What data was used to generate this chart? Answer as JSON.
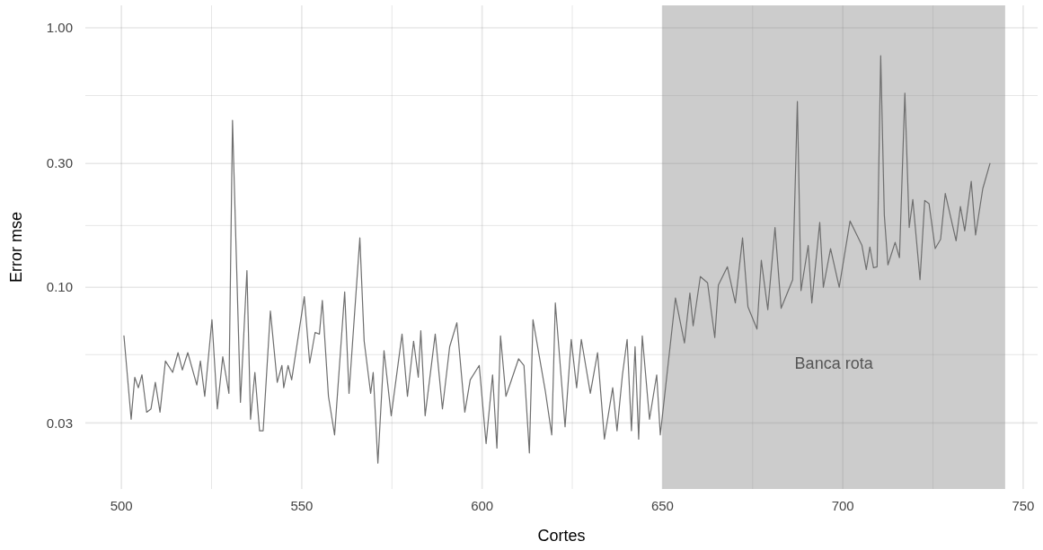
{
  "chart_data": {
    "type": "line",
    "xlabel": "Cortes",
    "ylabel": "Error mse",
    "log": "y",
    "grid": true,
    "xlim": [
      490,
      754
    ],
    "ylim": [
      0.0167,
      1.22
    ],
    "xticks": [
      500,
      {
        "value": 525,
        "label": null
      },
      550,
      {
        "value": 575,
        "label": null
      },
      600,
      {
        "value": 625,
        "label": null
      },
      650,
      {
        "value": 675,
        "label": null
      },
      700,
      {
        "value": 725,
        "label": null
      },
      750
    ],
    "yticks": [
      {
        "value": 0.03,
        "label": "0.03"
      },
      {
        "value": 0.055,
        "label": null
      },
      {
        "value": 0.1,
        "label": "0.10"
      },
      {
        "value": 0.173,
        "label": null
      },
      {
        "value": 0.3,
        "label": "0.30"
      },
      {
        "value": 0.548,
        "label": null
      },
      {
        "value": 1,
        "label": "1.00"
      }
    ],
    "bands": [
      {
        "axis": "x",
        "from": 650,
        "to": 745,
        "color": "#cccccc",
        "label": "Banca rota"
      }
    ],
    "series": [
      {
        "color": "#6e6e6e",
        "x": [
          500.7,
          502.7,
          503.7,
          504.7,
          505.7,
          507,
          508.2,
          509.4,
          510.7,
          512.2,
          514.2,
          515.7,
          516.9,
          518.4,
          520.9,
          521.9,
          523.1,
          525.1,
          526.6,
          528.1,
          529.8,
          530.8,
          531.8,
          533,
          534.8,
          535.8,
          537,
          538.3,
          539.3,
          541.3,
          543.2,
          544.5,
          545,
          546.2,
          547.2,
          550.7,
          552.2,
          553.7,
          554.9,
          555.7,
          557.4,
          559.1,
          561.9,
          563.1,
          566.1,
          567.3,
          569.1,
          569.8,
          571.1,
          572.8,
          574.8,
          577.8,
          579.3,
          581,
          582.3,
          583,
          584.2,
          587,
          589,
          591,
          593,
          595.2,
          596.7,
          599.2,
          601.1,
          602.9,
          604.1,
          605.1,
          606.6,
          610.1,
          611.6,
          613.1,
          614.1,
          617.5,
          619.3,
          620.3,
          623,
          624.7,
          626.2,
          627.5,
          630,
          632,
          633.9,
          636.2,
          637.4,
          638.9,
          640.2,
          641.4,
          642.4,
          643.4,
          644.4,
          646.4,
          648.4,
          649.4,
          653.6,
          656.1,
          657.6,
          658.5,
          660.5,
          662.5,
          664.5,
          665.5,
          668,
          670.2,
          672.2,
          673.7,
          676.2,
          677.4,
          679.2,
          681.2,
          682.9,
          686.1,
          687.4,
          688.4,
          690.4,
          691.4,
          693.6,
          694.6,
          696.6,
          699,
          702,
          705.3,
          706.5,
          707.5,
          708.5,
          709.5,
          710.5,
          711.5,
          712.5,
          714.5,
          715.7,
          717.2,
          718.4,
          719.4,
          721.4,
          722.7,
          723.9,
          725.6,
          727.1,
          728.4,
          731.4,
          732.6,
          733.8,
          735.6,
          736.8,
          738.8,
          740.8
        ],
        "values": [
          0.065,
          0.031,
          0.045,
          0.041,
          0.046,
          0.033,
          0.034,
          0.043,
          0.033,
          0.052,
          0.047,
          0.056,
          0.048,
          0.056,
          0.042,
          0.052,
          0.038,
          0.075,
          0.034,
          0.054,
          0.039,
          0.44,
          0.14,
          0.036,
          0.116,
          0.031,
          0.047,
          0.028,
          0.028,
          0.081,
          0.043,
          0.05,
          0.041,
          0.05,
          0.044,
          0.092,
          0.051,
          0.067,
          0.066,
          0.089,
          0.038,
          0.027,
          0.096,
          0.039,
          0.155,
          0.062,
          0.039,
          0.047,
          0.021,
          0.057,
          0.032,
          0.066,
          0.038,
          0.062,
          0.045,
          0.068,
          0.032,
          0.066,
          0.034,
          0.059,
          0.073,
          0.033,
          0.044,
          0.05,
          0.025,
          0.046,
          0.024,
          0.065,
          0.038,
          0.053,
          0.05,
          0.023,
          0.075,
          0.04,
          0.027,
          0.087,
          0.029,
          0.063,
          0.041,
          0.063,
          0.039,
          0.056,
          0.026,
          0.041,
          0.028,
          0.046,
          0.063,
          0.028,
          0.059,
          0.026,
          0.065,
          0.031,
          0.046,
          0.027,
          0.091,
          0.061,
          0.095,
          0.071,
          0.11,
          0.104,
          0.064,
          0.102,
          0.12,
          0.087,
          0.155,
          0.084,
          0.069,
          0.127,
          0.082,
          0.17,
          0.083,
          0.107,
          0.52,
          0.097,
          0.145,
          0.087,
          0.178,
          0.1,
          0.141,
          0.1,
          0.18,
          0.145,
          0.117,
          0.143,
          0.119,
          0.12,
          0.78,
          0.19,
          0.122,
          0.149,
          0.13,
          0.56,
          0.17,
          0.218,
          0.107,
          0.216,
          0.21,
          0.141,
          0.153,
          0.23,
          0.151,
          0.205,
          0.165,
          0.256,
          0.159,
          0.24,
          0.3
        ]
      }
    ]
  }
}
